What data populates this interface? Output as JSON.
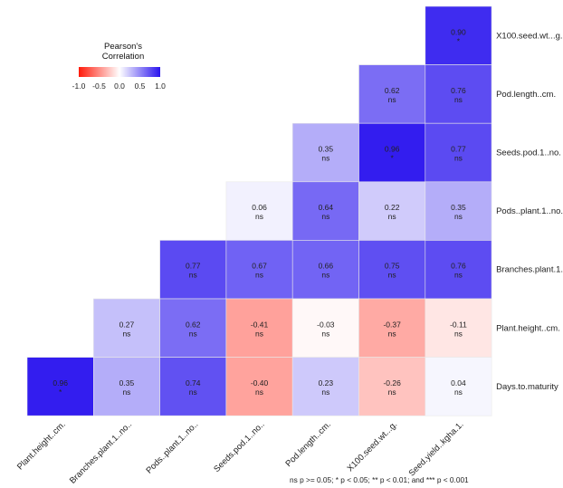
{
  "chart_data": {
    "type": "heatmap",
    "row_labels": [
      "X100.seed.wt...g.",
      "Pod.length..cm.",
      "Seeds.pod.1..no.",
      "Pods..plant.1..no.",
      "Branches.plant.1.",
      "Plant.height..cm.",
      "Days.to.maturity"
    ],
    "col_labels": [
      "Plant.height..cm.",
      "Branches.plant.1..no..",
      "Pods..plant.1..no..",
      "Seeds.pod.1..no..",
      "Pod.length..cm.",
      "X100.seed.wt...g.",
      "Seed.yield..kgha.1."
    ],
    "cells": [
      {
        "row": 0,
        "col": 6,
        "value": "0.90",
        "sig": "*"
      },
      {
        "row": 1,
        "col": 5,
        "value": "0.62",
        "sig": "ns"
      },
      {
        "row": 1,
        "col": 6,
        "value": "0.76",
        "sig": "ns"
      },
      {
        "row": 2,
        "col": 4,
        "value": "0.35",
        "sig": "ns"
      },
      {
        "row": 2,
        "col": 5,
        "value": "0.96",
        "sig": "*"
      },
      {
        "row": 2,
        "col": 6,
        "value": "0.77",
        "sig": "ns"
      },
      {
        "row": 3,
        "col": 3,
        "value": "0.06",
        "sig": "ns"
      },
      {
        "row": 3,
        "col": 4,
        "value": "0.64",
        "sig": "ns"
      },
      {
        "row": 3,
        "col": 5,
        "value": "0.22",
        "sig": "ns"
      },
      {
        "row": 3,
        "col": 6,
        "value": "0.35",
        "sig": "ns"
      },
      {
        "row": 4,
        "col": 2,
        "value": "0.77",
        "sig": "ns"
      },
      {
        "row": 4,
        "col": 3,
        "value": "0.67",
        "sig": "ns"
      },
      {
        "row": 4,
        "col": 4,
        "value": "0.66",
        "sig": "ns"
      },
      {
        "row": 4,
        "col": 5,
        "value": "0.75",
        "sig": "ns"
      },
      {
        "row": 4,
        "col": 6,
        "value": "0.76",
        "sig": "ns"
      },
      {
        "row": 5,
        "col": 1,
        "value": "0.27",
        "sig": "ns"
      },
      {
        "row": 5,
        "col": 2,
        "value": "0.62",
        "sig": "ns"
      },
      {
        "row": 5,
        "col": 3,
        "value": "-0.41",
        "sig": "ns"
      },
      {
        "row": 5,
        "col": 4,
        "value": "-0.03",
        "sig": "ns"
      },
      {
        "row": 5,
        "col": 5,
        "value": "-0.37",
        "sig": "ns"
      },
      {
        "row": 5,
        "col": 6,
        "value": "-0.11",
        "sig": "ns"
      },
      {
        "row": 6,
        "col": 0,
        "value": "0.96",
        "sig": "*"
      },
      {
        "row": 6,
        "col": 1,
        "value": "0.35",
        "sig": "ns"
      },
      {
        "row": 6,
        "col": 2,
        "value": "0.74",
        "sig": "ns"
      },
      {
        "row": 6,
        "col": 3,
        "value": "-0.40",
        "sig": "ns"
      },
      {
        "row": 6,
        "col": 4,
        "value": "0.23",
        "sig": "ns"
      },
      {
        "row": 6,
        "col": 5,
        "value": "-0.26",
        "sig": "ns"
      },
      {
        "row": 6,
        "col": 6,
        "value": "0.04",
        "sig": "ns"
      }
    ],
    "legend": {
      "title": "Pearson's\nCorrelation",
      "ticks": [
        "-1.0",
        "-0.5",
        "0.0",
        "0.5",
        "1.0"
      ],
      "range": [
        -1,
        1
      ],
      "placement": "top-left"
    },
    "colors": {
      "negative": "#ff1a0a",
      "zero": "#ffffff",
      "positive": "#2a14ee"
    },
    "footnote": "ns p >= 0.05; * p < 0.05; ** p < 0.01; and *** p < 0.001"
  }
}
